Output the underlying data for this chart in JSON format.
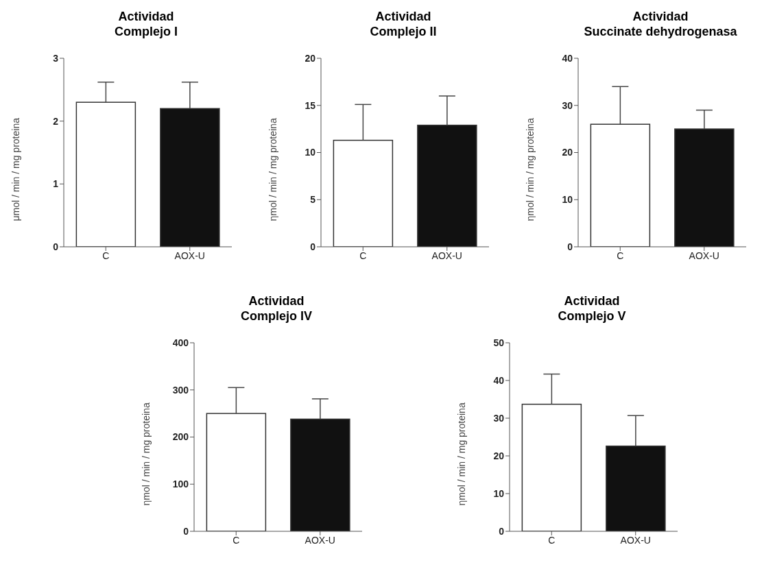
{
  "chart_data": [
    {
      "type": "bar",
      "title": "Actividad\nComplejo I",
      "ylabel": "μmol / min / mg proteina",
      "categories": [
        "C",
        "AOX-U"
      ],
      "values": [
        2.3,
        2.2
      ],
      "colors": [
        "#ffffff",
        "#111111"
      ],
      "errors": [
        [
          2.3,
          2.62
        ],
        [
          2.2,
          2.62
        ]
      ],
      "ylim": [
        0,
        3
      ],
      "yticks": [
        0,
        1,
        2,
        3
      ]
    },
    {
      "type": "bar",
      "title": "Actividad\nComplejo II",
      "ylabel": "ηmol / min / mg proteina",
      "categories": [
        "C",
        "AOX-U"
      ],
      "values": [
        11.3,
        12.9
      ],
      "colors": [
        "#ffffff",
        "#111111"
      ],
      "errors": [
        [
          11.3,
          15.1
        ],
        [
          12.9,
          16
        ]
      ],
      "ylim": [
        0,
        20
      ],
      "yticks": [
        0,
        5,
        10,
        15,
        20
      ]
    },
    {
      "type": "bar",
      "title": "Actividad\nSuccinate dehydrogenasa",
      "ylabel": "ηmol / min / mg proteina",
      "categories": [
        "C",
        "AOX-U"
      ],
      "values": [
        26,
        25
      ],
      "colors": [
        "#ffffff",
        "#111111"
      ],
      "errors": [
        [
          26,
          34
        ],
        [
          25,
          29
        ]
      ],
      "ylim": [
        0,
        40
      ],
      "yticks": [
        0,
        10,
        20,
        30,
        40
      ]
    },
    {
      "type": "bar",
      "title": "Actividad\nComplejo IV",
      "ylabel": "ηmol / min / mg proteina",
      "categories": [
        "C",
        "AOX-U"
      ],
      "values": [
        250,
        238
      ],
      "colors": [
        "#ffffff",
        "#111111"
      ],
      "errors": [
        [
          250,
          305
        ],
        [
          238,
          281
        ]
      ],
      "ylim": [
        0,
        400
      ],
      "yticks": [
        0,
        100,
        200,
        300,
        400
      ]
    },
    {
      "type": "bar",
      "title": "Actividad\nComplejo V",
      "ylabel": "ηmol / min / mg proteina",
      "categories": [
        "C",
        "AOX-U"
      ],
      "values": [
        33.7,
        22.6
      ],
      "colors": [
        "#ffffff",
        "#111111"
      ],
      "errors": [
        [
          33.7,
          41.7
        ],
        [
          22.6,
          30.7
        ]
      ],
      "ylim": [
        0,
        50
      ],
      "yticks": [
        0,
        10,
        20,
        30,
        40,
        50
      ]
    }
  ]
}
